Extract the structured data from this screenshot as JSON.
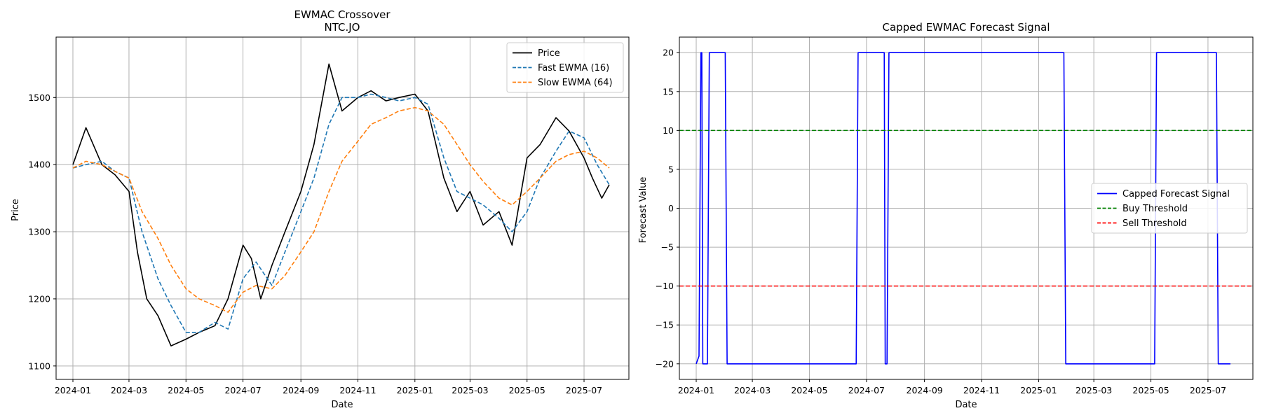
{
  "chart_data": [
    {
      "type": "line",
      "title": "EWMAC Crossover\nNTC.JO",
      "title_lines": [
        "EWMAC Crossover",
        "NTC.JO"
      ],
      "xlabel": "Date",
      "ylabel": "Price",
      "ylim": [
        1080,
        1590
      ],
      "yticks": [
        1100,
        1200,
        1300,
        1400,
        1500
      ],
      "xticks": [
        "2024-01",
        "2024-03",
        "2024-05",
        "2024-07",
        "2024-09",
        "2024-11",
        "2025-01",
        "2025-03",
        "2025-05",
        "2025-07"
      ],
      "grid": true,
      "legend_position": "top-right",
      "series": [
        {
          "name": "Price",
          "color": "#000000",
          "style": "solid",
          "x": [
            "2024-01-01",
            "2024-01-15",
            "2024-02-01",
            "2024-02-15",
            "2024-03-01",
            "2024-03-10",
            "2024-03-20",
            "2024-04-01",
            "2024-04-15",
            "2024-05-01",
            "2024-05-15",
            "2024-06-01",
            "2024-06-15",
            "2024-07-01",
            "2024-07-10",
            "2024-07-20",
            "2024-08-01",
            "2024-08-15",
            "2024-09-01",
            "2024-09-15",
            "2024-10-01",
            "2024-10-15",
            "2024-11-01",
            "2024-11-15",
            "2024-12-01",
            "2024-12-15",
            "2025-01-01",
            "2025-01-15",
            "2025-02-01",
            "2025-02-15",
            "2025-03-01",
            "2025-03-15",
            "2025-04-01",
            "2025-04-15",
            "2025-05-01",
            "2025-05-15",
            "2025-06-01",
            "2025-06-15",
            "2025-07-01",
            "2025-07-10",
            "2025-07-20",
            "2025-07-28"
          ],
          "values": [
            1400,
            1455,
            1400,
            1385,
            1360,
            1270,
            1200,
            1175,
            1130,
            1140,
            1150,
            1160,
            1200,
            1280,
            1260,
            1200,
            1250,
            1300,
            1360,
            1430,
            1550,
            1480,
            1500,
            1510,
            1495,
            1500,
            1505,
            1480,
            1380,
            1330,
            1360,
            1310,
            1330,
            1280,
            1410,
            1430,
            1470,
            1450,
            1410,
            1380,
            1350,
            1370
          ]
        },
        {
          "name": "Fast EWMA (16)",
          "color": "#1f77b4",
          "style": "dashed",
          "x": [
            "2024-01-01",
            "2024-01-15",
            "2024-02-01",
            "2024-02-15",
            "2024-03-01",
            "2024-03-15",
            "2024-04-01",
            "2024-04-15",
            "2024-05-01",
            "2024-05-15",
            "2024-06-01",
            "2024-06-15",
            "2024-07-01",
            "2024-07-15",
            "2024-08-01",
            "2024-08-15",
            "2024-09-01",
            "2024-09-15",
            "2024-10-01",
            "2024-10-15",
            "2024-11-01",
            "2024-11-15",
            "2024-12-01",
            "2024-12-15",
            "2025-01-01",
            "2025-01-15",
            "2025-02-01",
            "2025-02-15",
            "2025-03-01",
            "2025-03-15",
            "2025-04-01",
            "2025-04-15",
            "2025-05-01",
            "2025-05-15",
            "2025-06-01",
            "2025-06-15",
            "2025-07-01",
            "2025-07-15",
            "2025-07-28"
          ],
          "values": [
            1395,
            1400,
            1405,
            1390,
            1380,
            1300,
            1230,
            1190,
            1150,
            1150,
            1165,
            1155,
            1230,
            1255,
            1220,
            1270,
            1330,
            1380,
            1460,
            1500,
            1500,
            1505,
            1500,
            1495,
            1500,
            1490,
            1410,
            1360,
            1350,
            1340,
            1320,
            1300,
            1330,
            1380,
            1420,
            1450,
            1440,
            1400,
            1370
          ]
        },
        {
          "name": "Slow EWMA (64)",
          "color": "#ff7f0e",
          "style": "dashed",
          "x": [
            "2024-01-01",
            "2024-01-15",
            "2024-02-01",
            "2024-02-15",
            "2024-03-01",
            "2024-03-15",
            "2024-04-01",
            "2024-04-15",
            "2024-05-01",
            "2024-05-15",
            "2024-06-01",
            "2024-06-15",
            "2024-07-01",
            "2024-07-15",
            "2024-08-01",
            "2024-08-15",
            "2024-09-01",
            "2024-09-15",
            "2024-10-01",
            "2024-10-15",
            "2024-11-01",
            "2024-11-15",
            "2024-12-01",
            "2024-12-15",
            "2025-01-01",
            "2025-01-15",
            "2025-02-01",
            "2025-02-15",
            "2025-03-01",
            "2025-03-15",
            "2025-04-01",
            "2025-04-15",
            "2025-05-01",
            "2025-05-15",
            "2025-06-01",
            "2025-06-15",
            "2025-07-01",
            "2025-07-15",
            "2025-07-28"
          ],
          "values": [
            1395,
            1405,
            1400,
            1390,
            1380,
            1330,
            1290,
            1250,
            1215,
            1200,
            1190,
            1180,
            1210,
            1220,
            1215,
            1235,
            1270,
            1300,
            1360,
            1405,
            1435,
            1460,
            1470,
            1480,
            1485,
            1480,
            1460,
            1430,
            1400,
            1375,
            1350,
            1340,
            1360,
            1380,
            1405,
            1415,
            1420,
            1410,
            1395
          ]
        }
      ]
    },
    {
      "type": "line",
      "title": "Capped EWMAC Forecast Signal",
      "xlabel": "Date",
      "ylabel": "Forecast Value",
      "ylim": [
        -22,
        22
      ],
      "yticks": [
        -20,
        -15,
        -10,
        -5,
        0,
        5,
        10,
        15,
        20
      ],
      "xticks": [
        "2024-01",
        "2024-03",
        "2024-05",
        "2024-07",
        "2024-09",
        "2024-11",
        "2025-01",
        "2025-03",
        "2025-05",
        "2025-07"
      ],
      "grid": true,
      "legend_position": "center-right",
      "series": [
        {
          "name": "Capped Forecast Signal",
          "color": "#0000ff",
          "style": "solid",
          "x": [
            "2024-01-01",
            "2024-01-04",
            "2024-01-06",
            "2024-01-07",
            "2024-01-08",
            "2024-01-09",
            "2024-01-13",
            "2024-01-15",
            "2024-01-18",
            "2024-02-01",
            "2024-02-03",
            "2024-06-20",
            "2024-06-22",
            "2024-07-20",
            "2024-07-21",
            "2024-07-23",
            "2024-07-25",
            "2025-01-28",
            "2025-01-30",
            "2025-05-05",
            "2025-05-07",
            "2025-07-10",
            "2025-07-12",
            "2025-07-25"
          ],
          "values": [
            -20,
            -19,
            20,
            20,
            -20,
            -20,
            -20,
            20,
            20,
            20,
            -20,
            -20,
            20,
            20,
            -20,
            -20,
            20,
            20,
            -20,
            -20,
            20,
            20,
            -20,
            -20
          ]
        },
        {
          "name": "Buy Threshold",
          "color": "#008000",
          "style": "dashed",
          "values": [
            10
          ]
        },
        {
          "name": "Sell Threshold",
          "color": "#ff0000",
          "style": "dashed",
          "values": [
            -10
          ]
        }
      ]
    }
  ]
}
